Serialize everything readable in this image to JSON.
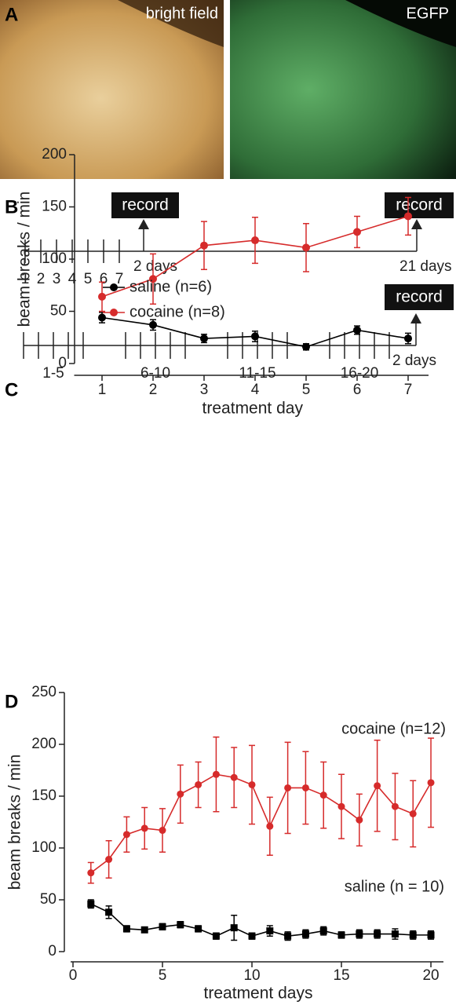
{
  "panel_a": {
    "letter": "A",
    "left_label": "bright field",
    "right_label": "EGFP"
  },
  "panel_b": {
    "letter": "B",
    "timeline_1": {
      "record_start": "record",
      "record_end": "record",
      "days": [
        1,
        2,
        3,
        4,
        5,
        6,
        7
      ],
      "gap_1": "2 days",
      "gap_2": "21 days"
    },
    "timeline_2": {
      "record": "record",
      "groups": [
        "1-5",
        "6-10",
        "11-15",
        "16-20"
      ],
      "gap": "2 days"
    }
  },
  "panel_c": {
    "letter": "C"
  },
  "panel_d": {
    "letter": "D"
  },
  "chart_data": [
    {
      "type": "line",
      "x_label": "treatment day",
      "y_label": "beam breaks / min",
      "x": [
        1,
        2,
        3,
        4,
        5,
        6,
        7
      ],
      "xlim": [
        0.5,
        7.4
      ],
      "xticks": [
        1,
        2,
        3,
        4,
        5,
        6,
        7
      ],
      "ylim": [
        0,
        200
      ],
      "yticks": [
        0,
        50,
        100,
        150,
        200
      ],
      "legend": "upper left",
      "series": [
        {
          "name": "saline (n=6)",
          "color": "#000000",
          "marker": "circle",
          "values": [
            44,
            37,
            24,
            26,
            16,
            32,
            24
          ],
          "errors": [
            5,
            5,
            4,
            5,
            3,
            4,
            5
          ]
        },
        {
          "name": "cocaine (n=8)",
          "color": "#d62b2b",
          "marker": "circle",
          "values": [
            64,
            81,
            113,
            118,
            111,
            126,
            141
          ],
          "errors": [
            14,
            24,
            23,
            22,
            23,
            15,
            18
          ]
        }
      ]
    },
    {
      "type": "line",
      "x_label": "treatment days",
      "y_label": "beam breaks / min",
      "x": [
        1,
        2,
        3,
        4,
        5,
        6,
        7,
        8,
        9,
        10,
        11,
        12,
        13,
        14,
        15,
        16,
        17,
        18,
        19,
        20
      ],
      "xlim": [
        0,
        20.7
      ],
      "xticks": [
        0,
        5,
        10,
        15,
        20
      ],
      "ylim": [
        0,
        250
      ],
      "yticks": [
        0,
        50,
        100,
        150,
        200,
        250
      ],
      "legend": "labels",
      "series": [
        {
          "name": "cocaine (n=12)",
          "color": "#d62b2b",
          "marker": "circle",
          "values": [
            76,
            89,
            113,
            119,
            117,
            152,
            161,
            171,
            168,
            161,
            121,
            158,
            158,
            151,
            140,
            127,
            160,
            140,
            133,
            163
          ],
          "errors": [
            10,
            18,
            17,
            20,
            21,
            28,
            22,
            36,
            29,
            38,
            28,
            44,
            35,
            32,
            31,
            25,
            44,
            32,
            32,
            43
          ]
        },
        {
          "name": "saline (n = 10)",
          "color": "#000000",
          "marker": "square",
          "values": [
            46,
            38,
            22,
            21,
            24,
            26,
            22,
            15,
            23,
            15,
            20,
            15,
            17,
            20,
            16,
            17,
            17,
            17,
            16,
            16
          ],
          "errors": [
            4,
            6,
            3,
            2,
            3,
            3,
            3,
            3,
            12,
            3,
            5,
            4,
            4,
            4,
            3,
            4,
            4,
            5,
            4,
            4
          ]
        }
      ]
    }
  ]
}
